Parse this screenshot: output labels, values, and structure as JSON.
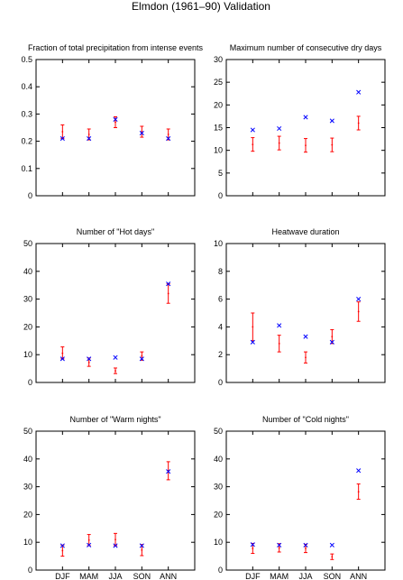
{
  "figure_title": "Elmdon (1961–90) Validation",
  "colors": {
    "observed": "#0000ff",
    "model": "#ff0000",
    "axis": "#000000"
  },
  "chart_data": [
    {
      "type": "scatter",
      "title": "Fraction of total precipitation from intense events",
      "categories": [
        "DJF",
        "MAM",
        "JJA",
        "SON",
        "ANN"
      ],
      "show_xticklabels": false,
      "ylim": [
        0,
        0.5
      ],
      "yticks": [
        0,
        0.1,
        0.2,
        0.3,
        0.4,
        0.5
      ],
      "yticklabels": [
        "0",
        "0.1",
        "0.2",
        "0.3",
        "0.4",
        "0.5"
      ],
      "observed": [
        0.21,
        0.21,
        0.28,
        0.23,
        0.21
      ],
      "model": [
        {
          "mid": 0.235,
          "lo": 0.21,
          "hi": 0.26
        },
        {
          "mid": 0.225,
          "lo": 0.205,
          "hi": 0.245
        },
        {
          "mid": 0.27,
          "lo": 0.25,
          "hi": 0.29
        },
        {
          "mid": 0.235,
          "lo": 0.215,
          "hi": 0.255
        },
        {
          "mid": 0.225,
          "lo": 0.205,
          "hi": 0.245
        }
      ]
    },
    {
      "type": "scatter",
      "title": "Maximum number of consecutive dry days",
      "categories": [
        "DJF",
        "MAM",
        "JJA",
        "SON",
        "ANN"
      ],
      "show_xticklabels": false,
      "ylim": [
        0,
        30
      ],
      "yticks": [
        0,
        5,
        10,
        15,
        20,
        25,
        30
      ],
      "yticklabels": [
        "0",
        "5",
        "10",
        "15",
        "20",
        "25",
        "30"
      ],
      "observed": [
        14.5,
        14.8,
        17.3,
        16.5,
        22.8
      ],
      "model": [
        {
          "mid": 11.3,
          "lo": 9.8,
          "hi": 12.8
        },
        {
          "mid": 11.6,
          "lo": 10.1,
          "hi": 13.1
        },
        {
          "mid": 11.1,
          "lo": 9.6,
          "hi": 12.6
        },
        {
          "mid": 11.2,
          "lo": 9.7,
          "hi": 12.7
        },
        {
          "mid": 16.0,
          "lo": 14.5,
          "hi": 17.5
        }
      ]
    },
    {
      "type": "scatter",
      "title": "Number of \"Hot days\"",
      "categories": [
        "DJF",
        "MAM",
        "JJA",
        "SON",
        "ANN"
      ],
      "show_xticklabels": false,
      "ylim": [
        0,
        50
      ],
      "yticks": [
        0,
        10,
        20,
        30,
        40,
        50
      ],
      "yticklabels": [
        "0",
        "10",
        "20",
        "30",
        "40",
        "50"
      ],
      "observed": [
        8.5,
        8.5,
        9.0,
        8.5,
        35.5
      ],
      "model": [
        {
          "mid": 10.5,
          "lo": 8.5,
          "hi": 12.8
        },
        {
          "mid": 7.2,
          "lo": 5.8,
          "hi": 8.8
        },
        {
          "mid": 4.2,
          "lo": 3.2,
          "hi": 5.2
        },
        {
          "mid": 9.5,
          "lo": 8.0,
          "hi": 11.0
        },
        {
          "mid": 32.0,
          "lo": 28.5,
          "hi": 35.5
        }
      ]
    },
    {
      "type": "scatter",
      "title": "Heatwave duration",
      "categories": [
        "DJF",
        "MAM",
        "JJA",
        "SON",
        "ANN"
      ],
      "show_xticklabels": false,
      "ylim": [
        0,
        10
      ],
      "yticks": [
        0,
        2,
        4,
        6,
        8,
        10
      ],
      "yticklabels": [
        "0",
        "2",
        "4",
        "6",
        "8",
        "10"
      ],
      "observed": [
        2.9,
        4.1,
        3.3,
        2.9,
        6.0
      ],
      "model": [
        {
          "mid": 4.0,
          "lo": 3.0,
          "hi": 5.0
        },
        {
          "mid": 2.8,
          "lo": 2.2,
          "hi": 3.4
        },
        {
          "mid": 1.8,
          "lo": 1.4,
          "hi": 2.2
        },
        {
          "mid": 3.3,
          "lo": 2.8,
          "hi": 3.8
        },
        {
          "mid": 5.1,
          "lo": 4.4,
          "hi": 5.8
        }
      ]
    },
    {
      "type": "scatter",
      "title": "Number of \"Warm nights\"",
      "categories": [
        "DJF",
        "MAM",
        "JJA",
        "SON",
        "ANN"
      ],
      "show_xticklabels": true,
      "ylim": [
        0,
        50
      ],
      "yticks": [
        0,
        10,
        20,
        30,
        40,
        50
      ],
      "yticklabels": [
        "0",
        "10",
        "20",
        "30",
        "40",
        "50"
      ],
      "observed": [
        8.8,
        9.0,
        8.8,
        8.8,
        35.5
      ],
      "model": [
        {
          "mid": 7.0,
          "lo": 5.0,
          "hi": 9.0
        },
        {
          "mid": 10.8,
          "lo": 8.8,
          "hi": 12.8
        },
        {
          "mid": 11.0,
          "lo": 8.8,
          "hi": 13.2
        },
        {
          "mid": 7.2,
          "lo": 5.2,
          "hi": 9.2
        },
        {
          "mid": 35.8,
          "lo": 32.5,
          "hi": 39.0
        }
      ]
    },
    {
      "type": "scatter",
      "title": "Number of \"Cold nights\"",
      "categories": [
        "DJF",
        "MAM",
        "JJA",
        "SON",
        "ANN"
      ],
      "show_xticklabels": true,
      "ylim": [
        0,
        50
      ],
      "yticks": [
        0,
        10,
        20,
        30,
        40,
        50
      ],
      "yticklabels": [
        "0",
        "10",
        "20",
        "30",
        "40",
        "50"
      ],
      "observed": [
        9.2,
        9.0,
        9.0,
        9.0,
        35.8
      ],
      "model": [
        {
          "mid": 7.8,
          "lo": 6.0,
          "hi": 9.6
        },
        {
          "mid": 8.0,
          "lo": 6.5,
          "hi": 9.5
        },
        {
          "mid": 7.8,
          "lo": 6.3,
          "hi": 9.3
        },
        {
          "mid": 4.8,
          "lo": 3.8,
          "hi": 5.8
        },
        {
          "mid": 28.2,
          "lo": 25.5,
          "hi": 31.0
        }
      ]
    }
  ]
}
